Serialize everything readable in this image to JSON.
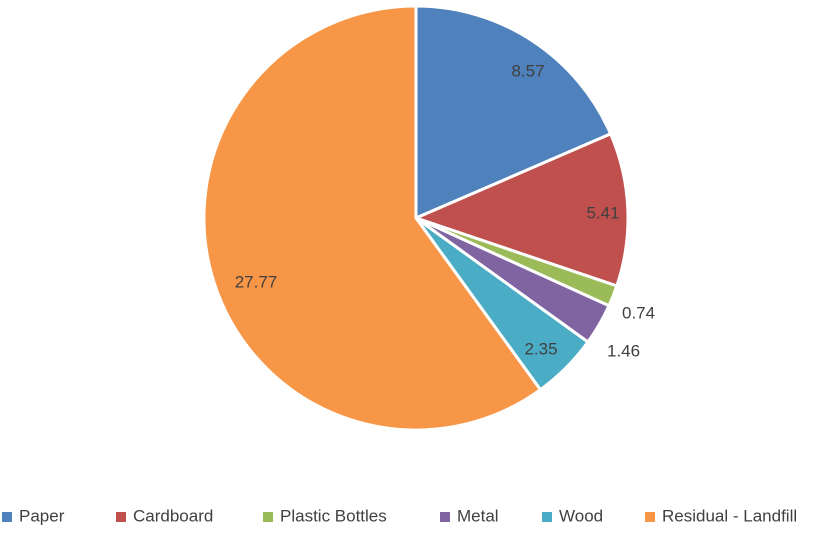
{
  "chart_data": {
    "type": "pie",
    "title": "",
    "categories": [
      "Paper",
      "Cardboard",
      "Plastic Bottles",
      "Metal",
      "Wood",
      "Residual - Landfill"
    ],
    "values": [
      8.57,
      5.41,
      0.74,
      1.46,
      2.35,
      27.77
    ],
    "value_labels": [
      "8.57",
      "5.41",
      "0.74",
      "1.46",
      "2.35",
      "27.77"
    ],
    "colors": [
      "#4F81BD",
      "#C0504D",
      "#9BBB59",
      "#8064A2",
      "#4BACC6",
      "#F79646"
    ],
    "start_angle_deg": 0,
    "direction": "clockwise",
    "legend_position": "bottom"
  }
}
